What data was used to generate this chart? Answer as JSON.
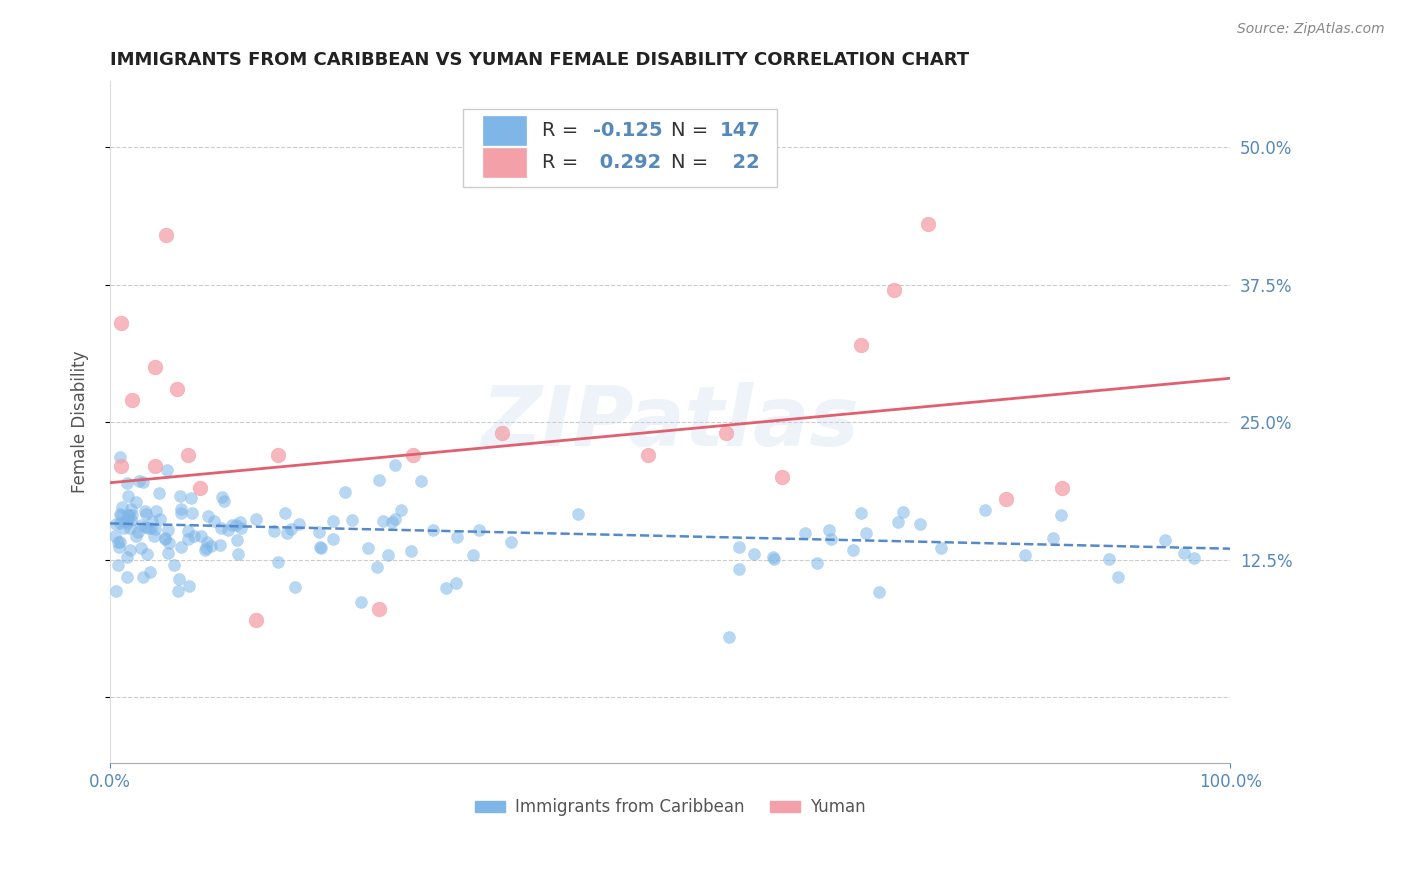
{
  "title": "IMMIGRANTS FROM CARIBBEAN VS YUMAN FEMALE DISABILITY CORRELATION CHART",
  "source": "Source: ZipAtlas.com",
  "ylabel": "Female Disability",
  "xlim": [
    0.0,
    1.0
  ],
  "ylim": [
    -0.06,
    0.56
  ],
  "yticks": [
    0.0,
    0.125,
    0.25,
    0.375,
    0.5
  ],
  "xticks": [
    0.0,
    1.0
  ],
  "xtick_labels": [
    "0.0%",
    "100.0%"
  ],
  "blue_color": "#7EB6E8",
  "pink_color": "#F4A0A8",
  "trend_blue_color": "#5588CC",
  "trend_pink_color": "#E06070",
  "watermark": "ZIPatlas",
  "background_color": "#FFFFFF",
  "grid_color": "#CCCCCC",
  "title_color": "#222222",
  "axis_label_color": "#5588BB",
  "tick_color": "#5588BB",
  "blue_trend_start": 0.158,
  "blue_trend_end": 0.135,
  "pink_trend_start": 0.195,
  "pink_trend_end": 0.29,
  "x_pink": [
    0.01,
    0.01,
    0.02,
    0.04,
    0.04,
    0.05,
    0.06,
    0.07,
    0.08,
    0.13,
    0.15,
    0.24,
    0.27,
    0.35,
    0.48,
    0.55,
    0.6,
    0.67,
    0.7,
    0.73,
    0.8,
    0.85
  ],
  "y_pink": [
    0.34,
    0.21,
    0.27,
    0.3,
    0.21,
    0.42,
    0.28,
    0.22,
    0.19,
    0.07,
    0.22,
    0.08,
    0.22,
    0.24,
    0.22,
    0.24,
    0.2,
    0.32,
    0.37,
    0.43,
    0.18,
    0.19
  ],
  "legend_R_blue": "-0.125",
  "legend_N_blue": "147",
  "legend_R_pink": "0.292",
  "legend_N_pink": "22"
}
